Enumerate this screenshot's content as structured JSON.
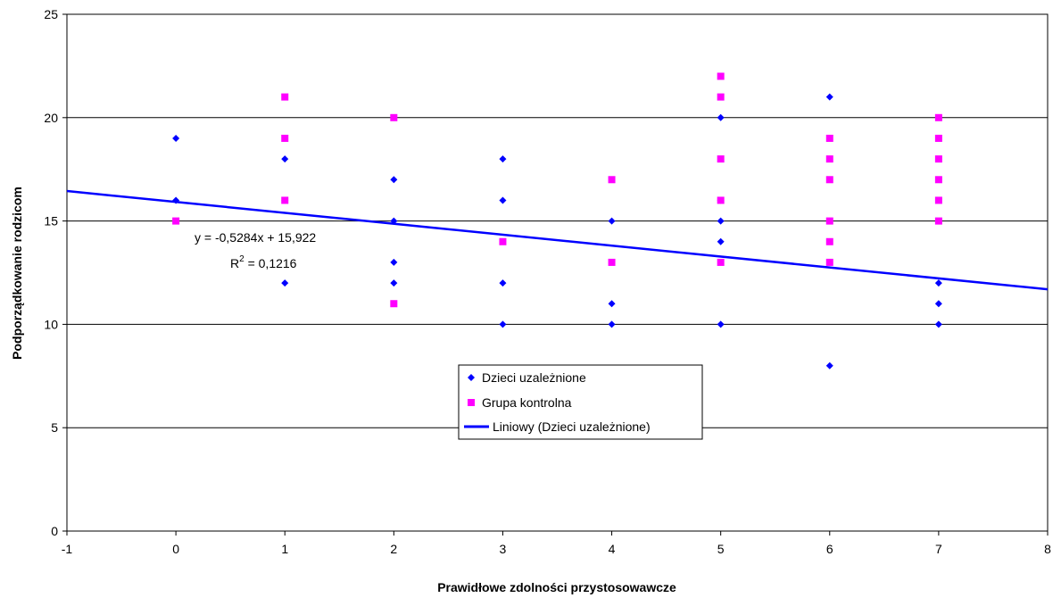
{
  "chart_data": {
    "type": "scatter",
    "xlabel": "Prawidłowe zdolności przystosowawcze",
    "ylabel": "Podporządkowanie rodzicom",
    "xlim": [
      -1,
      8
    ],
    "ylim": [
      0,
      25
    ],
    "xticks": [
      "-1",
      "0",
      "1",
      "2",
      "3",
      "4",
      "5",
      "6",
      "7",
      "8"
    ],
    "yticks": [
      "0",
      "5",
      "10",
      "15",
      "20",
      "25"
    ],
    "grid": "horizontal",
    "legend_position": "center",
    "series": [
      {
        "name": "Dzieci uzależnione",
        "marker": "diamond",
        "color": "#0000ff",
        "points": [
          [
            0,
            19
          ],
          [
            0,
            16
          ],
          [
            1,
            18
          ],
          [
            1,
            16
          ],
          [
            1,
            12
          ],
          [
            2,
            17
          ],
          [
            2,
            15
          ],
          [
            2,
            13
          ],
          [
            2,
            12
          ],
          [
            3,
            18
          ],
          [
            3,
            16
          ],
          [
            3,
            12
          ],
          [
            3,
            10
          ],
          [
            4,
            15
          ],
          [
            4,
            11
          ],
          [
            4,
            10
          ],
          [
            5,
            20
          ],
          [
            5,
            16
          ],
          [
            5,
            15
          ],
          [
            5,
            14
          ],
          [
            5,
            10
          ],
          [
            6,
            21
          ],
          [
            6,
            8
          ],
          [
            7,
            12
          ],
          [
            7,
            11
          ],
          [
            7,
            10
          ]
        ]
      },
      {
        "name": "Grupa kontrolna",
        "marker": "square",
        "color": "#ff00ff",
        "points": [
          [
            0,
            15
          ],
          [
            1,
            21
          ],
          [
            1,
            19
          ],
          [
            1,
            16
          ],
          [
            2,
            20
          ],
          [
            2,
            11
          ],
          [
            3,
            14
          ],
          [
            4,
            17
          ],
          [
            4,
            13
          ],
          [
            5,
            22
          ],
          [
            5,
            21
          ],
          [
            5,
            18
          ],
          [
            5,
            16
          ],
          [
            5,
            13
          ],
          [
            6,
            19
          ],
          [
            6,
            18
          ],
          [
            6,
            17
          ],
          [
            6,
            15
          ],
          [
            6,
            14
          ],
          [
            6,
            13
          ],
          [
            7,
            20
          ],
          [
            7,
            19
          ],
          [
            7,
            18
          ],
          [
            7,
            17
          ],
          [
            7,
            16
          ],
          [
            7,
            15
          ]
        ]
      }
    ],
    "trendline": {
      "name": "Liniowy (Dzieci uzależnione)",
      "color": "#0000ff",
      "slope": -0.5284,
      "intercept": 15.922,
      "x_range": [
        -1,
        8
      ],
      "equation_text": "y = -0,5284x + 15,922",
      "r2_label": "R",
      "r2_sup": "2",
      "r2_value_text": " = 0,1216"
    }
  }
}
